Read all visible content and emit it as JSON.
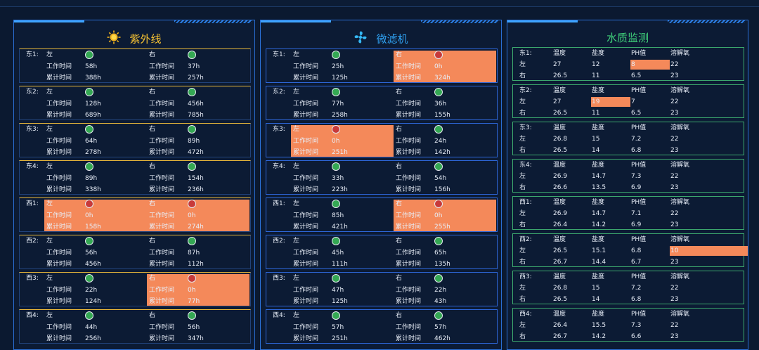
{
  "colors": {
    "accent": "#2a6fd6",
    "alarm": "#f4895a",
    "ok": "#34a853",
    "bad": "#c83a3a",
    "uv_title": "#f5c132",
    "mf_title": "#2fa0f0",
    "wq_title": "#3fd07a"
  },
  "labels": {
    "left": "左",
    "right": "右",
    "work": "工作时间",
    "total": "累计时间",
    "temp": "温度",
    "salt": "盐度",
    "ph": "PH值",
    "oxy": "溶解氧"
  },
  "uv": {
    "title": "紫外线",
    "icon": "sun-icon",
    "units": [
      {
        "name": "东1:",
        "l": {
          "s": "ok",
          "w": "58h",
          "t": "388h"
        },
        "r": {
          "s": "ok",
          "w": "37h",
          "t": "257h"
        }
      },
      {
        "name": "东2:",
        "l": {
          "s": "ok",
          "w": "128h",
          "t": "689h"
        },
        "r": {
          "s": "ok",
          "w": "456h",
          "t": "785h"
        }
      },
      {
        "name": "东3:",
        "l": {
          "s": "ok",
          "w": "64h",
          "t": "278h"
        },
        "r": {
          "s": "ok",
          "w": "89h",
          "t": "472h"
        }
      },
      {
        "name": "东4:",
        "l": {
          "s": "ok",
          "w": "89h",
          "t": "338h"
        },
        "r": {
          "s": "ok",
          "w": "154h",
          "t": "236h"
        }
      },
      {
        "name": "西1:",
        "l": {
          "s": "bad",
          "w": "0h",
          "t": "158h"
        },
        "r": {
          "s": "bad",
          "w": "0h",
          "t": "274h"
        }
      },
      {
        "name": "西2:",
        "l": {
          "s": "ok",
          "w": "56h",
          "t": "456h"
        },
        "r": {
          "s": "ok",
          "w": "87h",
          "t": "112h"
        }
      },
      {
        "name": "西3:",
        "l": {
          "s": "ok",
          "w": "22h",
          "t": "124h"
        },
        "r": {
          "s": "bad",
          "w": "0h",
          "t": "77h"
        }
      },
      {
        "name": "西4:",
        "l": {
          "s": "ok",
          "w": "44h",
          "t": "256h"
        },
        "r": {
          "s": "ok",
          "w": "56h",
          "t": "347h"
        }
      }
    ]
  },
  "mf": {
    "title": "微滤机",
    "icon": "fan-icon",
    "units": [
      {
        "name": "东1:",
        "l": {
          "s": "ok",
          "w": "25h",
          "t": "125h"
        },
        "r": {
          "s": "bad",
          "w": "0h",
          "t": "324h"
        }
      },
      {
        "name": "东2:",
        "l": {
          "s": "ok",
          "w": "77h",
          "t": "258h"
        },
        "r": {
          "s": "ok",
          "w": "36h",
          "t": "155h"
        }
      },
      {
        "name": "东3:",
        "l": {
          "s": "bad",
          "w": "0h",
          "t": "251h"
        },
        "r": {
          "s": "ok",
          "w": "24h",
          "t": "142h"
        }
      },
      {
        "name": "东4:",
        "l": {
          "s": "ok",
          "w": "33h",
          "t": "223h"
        },
        "r": {
          "s": "ok",
          "w": "54h",
          "t": "156h"
        }
      },
      {
        "name": "西1:",
        "l": {
          "s": "ok",
          "w": "85h",
          "t": "421h"
        },
        "r": {
          "s": "bad",
          "w": "0h",
          "t": "255h"
        }
      },
      {
        "name": "西2:",
        "l": {
          "s": "ok",
          "w": "45h",
          "t": "111h"
        },
        "r": {
          "s": "ok",
          "w": "65h",
          "t": "135h"
        }
      },
      {
        "name": "西3:",
        "l": {
          "s": "ok",
          "w": "47h",
          "t": "125h"
        },
        "r": {
          "s": "ok",
          "w": "22h",
          "t": "43h"
        }
      },
      {
        "name": "西4:",
        "l": {
          "s": "ok",
          "w": "57h",
          "t": "251h"
        },
        "r": {
          "s": "ok",
          "w": "57h",
          "t": "462h"
        }
      }
    ]
  },
  "wq": {
    "title": "水质监测",
    "units": [
      {
        "name": "东1:",
        "l": [
          "27",
          "12",
          "8",
          "22"
        ],
        "r": [
          "26.5",
          "11",
          "6.5",
          "23"
        ],
        "alarm_l": 2
      },
      {
        "name": "东2:",
        "l": [
          "27",
          "19",
          "7",
          "22"
        ],
        "r": [
          "26.5",
          "11",
          "6.5",
          "23"
        ],
        "alarm_l": 1
      },
      {
        "name": "东3:",
        "l": [
          "26.8",
          "15",
          "7.2",
          "22"
        ],
        "r": [
          "26.5",
          "14",
          "6.8",
          "23"
        ]
      },
      {
        "name": "东4:",
        "l": [
          "26.9",
          "14.7",
          "7.3",
          "22"
        ],
        "r": [
          "26.6",
          "13.5",
          "6.9",
          "23"
        ]
      },
      {
        "name": "西1:",
        "l": [
          "26.9",
          "14.7",
          "7.1",
          "22"
        ],
        "r": [
          "26.4",
          "14.2",
          "6.9",
          "23"
        ]
      },
      {
        "name": "西2:",
        "l": [
          "26.5",
          "15.1",
          "6.8",
          "10"
        ],
        "r": [
          "26.7",
          "14.4",
          "6.7",
          "23"
        ],
        "alarm_l": 3
      },
      {
        "name": "西3:",
        "l": [
          "26.8",
          "15",
          "7.2",
          "22"
        ],
        "r": [
          "26.5",
          "14",
          "6.8",
          "23"
        ]
      },
      {
        "name": "西4:",
        "l": [
          "26.4",
          "15.5",
          "7.3",
          "22"
        ],
        "r": [
          "26.7",
          "14.2",
          "6.6",
          "23"
        ]
      }
    ]
  }
}
